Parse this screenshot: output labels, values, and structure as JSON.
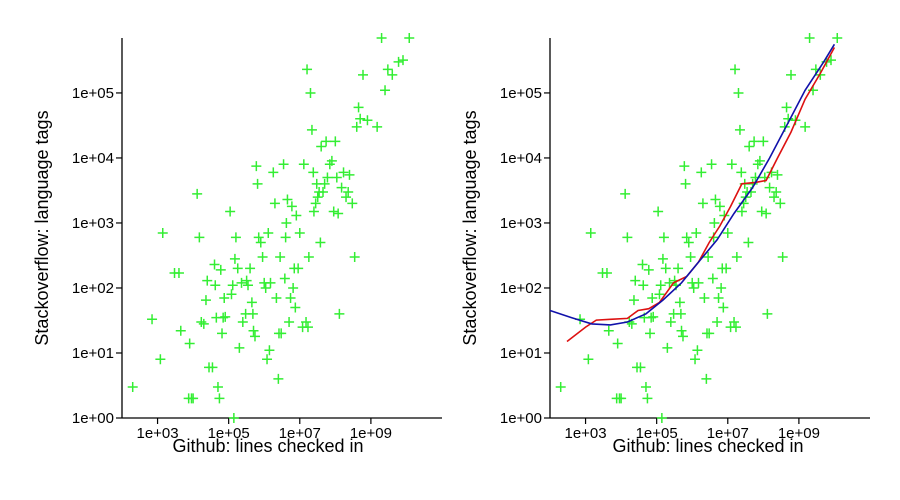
{
  "chart_data": [
    {
      "type": "scatter",
      "title": "",
      "xlabel": "Github: lines checked in",
      "ylabel": "Stackoverflow: language tags",
      "x_scale": "log10",
      "y_scale": "log10",
      "xlim": [
        100,
        100000000000
      ],
      "ylim": [
        1,
        700000
      ],
      "x_tick_values": [
        1000,
        100000,
        10000000,
        1000000000
      ],
      "x_tick_labels": [
        "1e+03",
        "1e+05",
        "1e+07",
        "1e+09"
      ],
      "y_tick_values": [
        1,
        10,
        100,
        1000,
        10000,
        100000
      ],
      "y_tick_labels": [
        "1e+00",
        "1e+01",
        "1e+02",
        "1e+03",
        "1e+04",
        "1e+05"
      ],
      "grid": false,
      "marker": "plus",
      "point_color": "#33ee33",
      "points": [
        [
          200,
          3
        ],
        [
          700,
          33
        ],
        [
          1200,
          8
        ],
        [
          1400,
          700
        ],
        [
          3000,
          170
        ],
        [
          4000,
          170
        ],
        [
          4500,
          22
        ],
        [
          7500,
          2
        ],
        [
          8000,
          14
        ],
        [
          9000,
          2
        ],
        [
          10000,
          2
        ],
        [
          13000,
          2800
        ],
        [
          15000,
          600
        ],
        [
          17000,
          30
        ],
        [
          20000,
          28
        ],
        [
          23000,
          65
        ],
        [
          25000,
          130
        ],
        [
          28000,
          6
        ],
        [
          35000,
          6
        ],
        [
          40000,
          230
        ],
        [
          42000,
          110
        ],
        [
          45000,
          35
        ],
        [
          50000,
          3
        ],
        [
          55000,
          2
        ],
        [
          60000,
          190
        ],
        [
          65000,
          20
        ],
        [
          70000,
          35
        ],
        [
          75000,
          70
        ],
        [
          80000,
          36
        ],
        [
          110000,
          1500
        ],
        [
          120000,
          80
        ],
        [
          130000,
          110
        ],
        [
          140000,
          1
        ],
        [
          150000,
          280
        ],
        [
          160000,
          600
        ],
        [
          180000,
          200
        ],
        [
          200000,
          12
        ],
        [
          230000,
          120
        ],
        [
          250000,
          30
        ],
        [
          300000,
          40
        ],
        [
          320000,
          130
        ],
        [
          350000,
          110
        ],
        [
          400000,
          200
        ],
        [
          450000,
          60
        ],
        [
          480000,
          40
        ],
        [
          500000,
          22
        ],
        [
          550000,
          18
        ],
        [
          600000,
          7500
        ],
        [
          650000,
          4000
        ],
        [
          700000,
          600
        ],
        [
          800000,
          500
        ],
        [
          900000,
          300
        ],
        [
          1000000,
          120
        ],
        [
          1100000,
          100
        ],
        [
          1200000,
          8
        ],
        [
          1300000,
          700
        ],
        [
          1400000,
          11
        ],
        [
          1500000,
          120
        ],
        [
          1800000,
          6000
        ],
        [
          2000000,
          2000
        ],
        [
          2200000,
          70
        ],
        [
          2500000,
          4
        ],
        [
          2600000,
          20
        ],
        [
          2800000,
          300
        ],
        [
          3000000,
          20
        ],
        [
          3500000,
          8000
        ],
        [
          3800000,
          140
        ],
        [
          4000000,
          600
        ],
        [
          4200000,
          1000
        ],
        [
          4500000,
          2300
        ],
        [
          5000000,
          30
        ],
        [
          5500000,
          70
        ],
        [
          6000000,
          1800
        ],
        [
          6500000,
          100
        ],
        [
          7000000,
          200
        ],
        [
          7500000,
          50
        ],
        [
          8000000,
          1300
        ],
        [
          9000000,
          200
        ],
        [
          10000000,
          700
        ],
        [
          12000000,
          25
        ],
        [
          13000000,
          8000
        ],
        [
          15000000,
          30
        ],
        [
          16000000,
          230000
        ],
        [
          17000000,
          25
        ],
        [
          18000000,
          300
        ],
        [
          20000000,
          100000
        ],
        [
          22000000,
          27000
        ],
        [
          24000000,
          6000
        ],
        [
          25000000,
          1500
        ],
        [
          28000000,
          2000
        ],
        [
          30000000,
          4000
        ],
        [
          32000000,
          2500
        ],
        [
          35000000,
          3000
        ],
        [
          38000000,
          500
        ],
        [
          40000000,
          15000
        ],
        [
          45000000,
          3000
        ],
        [
          50000000,
          4000
        ],
        [
          55000000,
          18000
        ],
        [
          60000000,
          5000
        ],
        [
          70000000,
          8000
        ],
        [
          80000000,
          9000
        ],
        [
          90000000,
          1500
        ],
        [
          100000000,
          18000
        ],
        [
          110000000,
          5000
        ],
        [
          120000000,
          1400
        ],
        [
          130000000,
          40
        ],
        [
          150000000,
          3500
        ],
        [
          170000000,
          6000
        ],
        [
          200000000,
          2500
        ],
        [
          230000000,
          3000
        ],
        [
          250000000,
          5500
        ],
        [
          300000000,
          2000
        ],
        [
          350000000,
          300
        ],
        [
          400000000,
          30000
        ],
        [
          450000000,
          60000
        ],
        [
          500000000,
          40000
        ],
        [
          600000000,
          190000
        ],
        [
          800000000,
          38000
        ],
        [
          1500000000,
          30000
        ],
        [
          2000000000,
          700000
        ],
        [
          2500000000,
          110000
        ],
        [
          3000000000,
          230000
        ],
        [
          4000000000,
          190000
        ],
        [
          6000000000,
          300000
        ],
        [
          8000000000,
          320000
        ],
        [
          12000000000,
          700000
        ]
      ]
    },
    {
      "type": "scatter",
      "title": "",
      "xlabel": "Github: lines checked in",
      "ylabel": "Stackoverflow: language tags",
      "x_scale": "log10",
      "y_scale": "log10",
      "xlim": [
        100,
        100000000000
      ],
      "ylim": [
        1,
        700000
      ],
      "x_tick_values": [
        1000,
        100000,
        10000000,
        1000000000
      ],
      "x_tick_labels": [
        "1e+03",
        "1e+05",
        "1e+07",
        "1e+09"
      ],
      "y_tick_values": [
        1,
        10,
        100,
        1000,
        10000,
        100000
      ],
      "y_tick_labels": [
        "1e+00",
        "1e+01",
        "1e+02",
        "1e+03",
        "1e+04",
        "1e+05"
      ],
      "grid": false,
      "marker": "plus",
      "point_color": "#33ee33",
      "points": "same as panel 1",
      "lines": [
        {
          "color": "#dd1111",
          "points": [
            [
              300,
              15
            ],
            [
              1000,
              25
            ],
            [
              2000,
              32
            ],
            [
              5000,
              33
            ],
            [
              15000,
              34
            ],
            [
              30000,
              45
            ],
            [
              60000,
              48
            ],
            [
              120000,
              60
            ],
            [
              300000,
              120
            ],
            [
              700000,
              150
            ],
            [
              1500000,
              250
            ],
            [
              3000000,
              500
            ],
            [
              6000000,
              900
            ],
            [
              12000000,
              1800
            ],
            [
              25000000,
              4000
            ],
            [
              60000000,
              4200
            ],
            [
              120000000,
              4500
            ],
            [
              250000000,
              10000
            ],
            [
              600000000,
              25000
            ],
            [
              1500000000,
              80000
            ],
            [
              4000000000,
              200000
            ],
            [
              10000000000,
              500000
            ]
          ]
        },
        {
          "color": "#1111aa",
          "points": [
            [
              100,
              45
            ],
            [
              400,
              35
            ],
            [
              1500,
              28
            ],
            [
              5000,
              27
            ],
            [
              15000,
              30
            ],
            [
              50000,
              40
            ],
            [
              150000,
              65
            ],
            [
              500000,
              120
            ],
            [
              1500000,
              250
            ],
            [
              5000000,
              550
            ],
            [
              15000000,
              1400
            ],
            [
              50000000,
              3500
            ],
            [
              150000000,
              10000
            ],
            [
              500000000,
              35000
            ],
            [
              1500000000,
              110000
            ],
            [
              5000000000,
              300000
            ],
            [
              10000000000,
              560000
            ]
          ]
        }
      ]
    }
  ]
}
